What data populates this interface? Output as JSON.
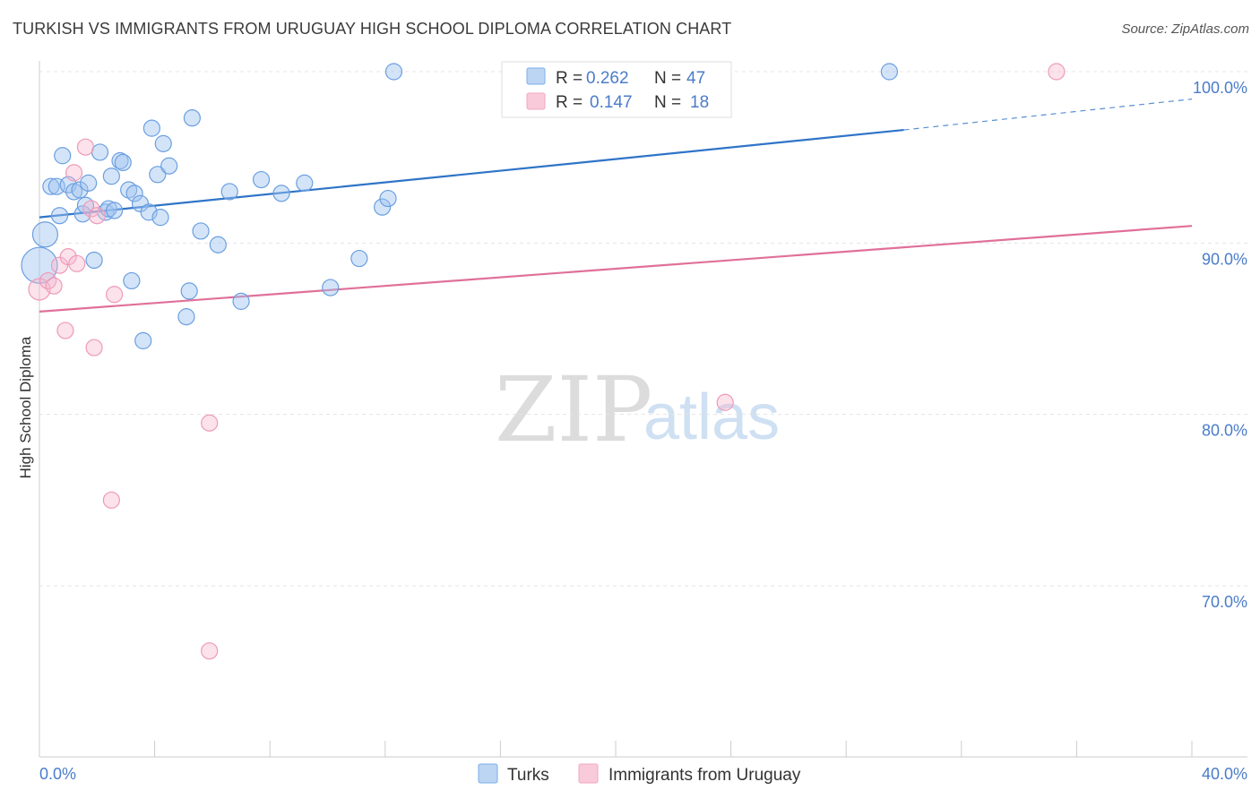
{
  "chart_data": {
    "type": "scatter",
    "title": "TURKISH VS IMMIGRANTS FROM URUGUAY HIGH SCHOOL DIPLOMA CORRELATION CHART",
    "source": "Source: ZipAtlas.com",
    "xlabel": "",
    "ylabel": "High School Diploma",
    "xlim": [
      0,
      40
    ],
    "ylim": [
      60.5,
      100.5
    ],
    "x_tick_labels": {
      "min": "0.0%",
      "max": "40.0%"
    },
    "y_ticks": [
      {
        "value": 70,
        "label": "70.0%"
      },
      {
        "value": 80,
        "label": "80.0%"
      },
      {
        "value": 90,
        "label": "90.0%"
      },
      {
        "value": 100,
        "label": "100.0%"
      }
    ],
    "legend": [
      {
        "name": "Turks",
        "r_label": "R =",
        "r_value": "0.262",
        "n_label": "N =",
        "n_value": "47"
      },
      {
        "name": "Immigrants from Uruguay",
        "r_label": "R =",
        "r_value": "0.147",
        "n_label": "N =",
        "n_value": "18"
      }
    ],
    "watermark": {
      "zip": "ZIP",
      "atlas": "atlas"
    },
    "colors": {
      "turks": "#7aaee8",
      "uruguay": "#f2a7bf",
      "turks_line": "#2f74c8",
      "uruguay_line": "#e07099",
      "tick_text": "#4a7cc9"
    },
    "series": [
      {
        "name": "Turks",
        "trend": {
          "x0": 0,
          "y0": 91.5,
          "x1": 30,
          "y1": 96.6,
          "dash_to_x": 40,
          "dash_to_y": 98.4
        },
        "points": [
          [
            0.2,
            90.5,
            14
          ],
          [
            0.0,
            88.7,
            20
          ],
          [
            0.4,
            93.3,
            9
          ],
          [
            0.6,
            93.3,
            9
          ],
          [
            0.7,
            91.6,
            9
          ],
          [
            0.8,
            95.1,
            9
          ],
          [
            1.0,
            93.4,
            9
          ],
          [
            1.2,
            93.0,
            9
          ],
          [
            1.4,
            93.1,
            9
          ],
          [
            1.5,
            91.7,
            9
          ],
          [
            1.6,
            92.2,
            9
          ],
          [
            1.7,
            93.5,
            9
          ],
          [
            1.9,
            89.0,
            9
          ],
          [
            2.1,
            95.3,
            9
          ],
          [
            2.3,
            91.8,
            9
          ],
          [
            2.4,
            92.0,
            9
          ],
          [
            2.5,
            93.9,
            9
          ],
          [
            2.6,
            91.9,
            9
          ],
          [
            2.8,
            94.8,
            9
          ],
          [
            2.9,
            94.7,
            9
          ],
          [
            3.1,
            93.1,
            9
          ],
          [
            3.2,
            87.8,
            9
          ],
          [
            3.3,
            92.9,
            9
          ],
          [
            3.5,
            92.3,
            9
          ],
          [
            3.6,
            84.3,
            9
          ],
          [
            3.8,
            91.8,
            9
          ],
          [
            3.9,
            96.7,
            9
          ],
          [
            4.1,
            94.0,
            9
          ],
          [
            4.2,
            91.5,
            9
          ],
          [
            4.3,
            95.8,
            9
          ],
          [
            4.5,
            94.5,
            9
          ],
          [
            5.1,
            85.7,
            9
          ],
          [
            5.2,
            87.2,
            9
          ],
          [
            5.3,
            97.3,
            9
          ],
          [
            5.6,
            90.7,
            9
          ],
          [
            6.2,
            89.9,
            9
          ],
          [
            6.6,
            93.0,
            9
          ],
          [
            7.0,
            86.6,
            9
          ],
          [
            7.7,
            93.7,
            9
          ],
          [
            8.4,
            92.9,
            9
          ],
          [
            9.2,
            93.5,
            9
          ],
          [
            10.1,
            87.4,
            9
          ],
          [
            11.1,
            89.1,
            9
          ],
          [
            11.9,
            92.1,
            9
          ],
          [
            12.1,
            92.6,
            9
          ],
          [
            12.3,
            100.0,
            9
          ],
          [
            29.5,
            100.0,
            9
          ]
        ]
      },
      {
        "name": "Immigrants from Uruguay",
        "trend": {
          "x0": 0,
          "y0": 86.0,
          "x1": 40,
          "y1": 91.0
        },
        "points": [
          [
            0.0,
            87.3,
            12
          ],
          [
            0.3,
            87.8,
            9
          ],
          [
            0.5,
            87.5,
            9
          ],
          [
            0.7,
            88.7,
            9
          ],
          [
            0.9,
            84.9,
            9
          ],
          [
            1.0,
            89.2,
            9
          ],
          [
            1.2,
            94.1,
            9
          ],
          [
            1.3,
            88.8,
            9
          ],
          [
            1.6,
            95.6,
            9
          ],
          [
            1.8,
            92.0,
            9
          ],
          [
            1.9,
            83.9,
            9
          ],
          [
            2.0,
            91.6,
            9
          ],
          [
            2.5,
            75.0,
            9
          ],
          [
            2.6,
            87.0,
            9
          ],
          [
            5.9,
            79.5,
            9
          ],
          [
            5.9,
            66.2,
            9
          ],
          [
            23.8,
            80.7,
            9
          ],
          [
            35.3,
            100.0,
            9
          ]
        ]
      }
    ]
  }
}
